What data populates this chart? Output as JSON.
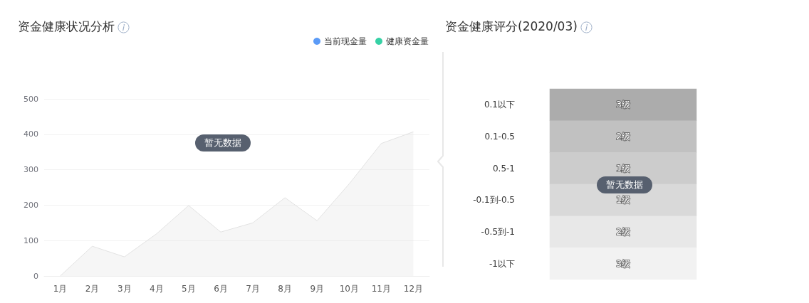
{
  "chart_data": [
    {
      "type": "area",
      "title": "资金健康状况分析",
      "categories": [
        "1月",
        "2月",
        "3月",
        "4月",
        "5月",
        "6月",
        "7月",
        "8月",
        "9月",
        "10月",
        "11月",
        "12月"
      ],
      "series": [
        {
          "color": "#e2e2e2",
          "values": [
            0,
            84,
            54,
            119,
            199,
            124,
            150,
            221,
            156,
            260,
            374,
            407
          ]
        },
        {
          "name": "当前现金量",
          "color": "#5b9bf7",
          "values": [
            null,
            null,
            null,
            null,
            null,
            null,
            null,
            null,
            null,
            null,
            null,
            null
          ]
        },
        {
          "name": "健康资金量",
          "color": "#36d1a5",
          "values": [
            null,
            null,
            null,
            null,
            null,
            null,
            null,
            null,
            null,
            null,
            null,
            null
          ]
        }
      ],
      "ylim": [
        0,
        500
      ],
      "yticks": [
        0,
        100,
        200,
        300,
        400,
        500
      ],
      "grid": "y",
      "legend": "top right",
      "marker": "none",
      "annotations": [
        "暂无数据"
      ]
    },
    {
      "type": "heatmap",
      "title": "资金健康评分(2020/03)",
      "categories": [
        null
      ],
      "y_categories": [
        "0.1以下",
        "0.1-0.5",
        "0.5-1",
        "-0.1到-0.5",
        "-0.5到-1",
        "-1以下"
      ],
      "cells": [
        [
          3
        ],
        [
          2
        ],
        [
          1
        ],
        [
          1
        ],
        [
          2
        ],
        [
          3
        ]
      ],
      "cell_labels": [
        [
          "3级"
        ],
        [
          "2级"
        ],
        [
          "1级"
        ],
        [
          "1级"
        ],
        [
          "2级"
        ],
        [
          "3级"
        ]
      ],
      "colors": [
        "#acacac",
        "#c1c1c1",
        "#cccccc",
        "#d9d9d9",
        "#e8e8e8",
        "#f2f2f2"
      ],
      "tick_labels": "y",
      "annotations": [
        "暂无数据"
      ]
    }
  ]
}
